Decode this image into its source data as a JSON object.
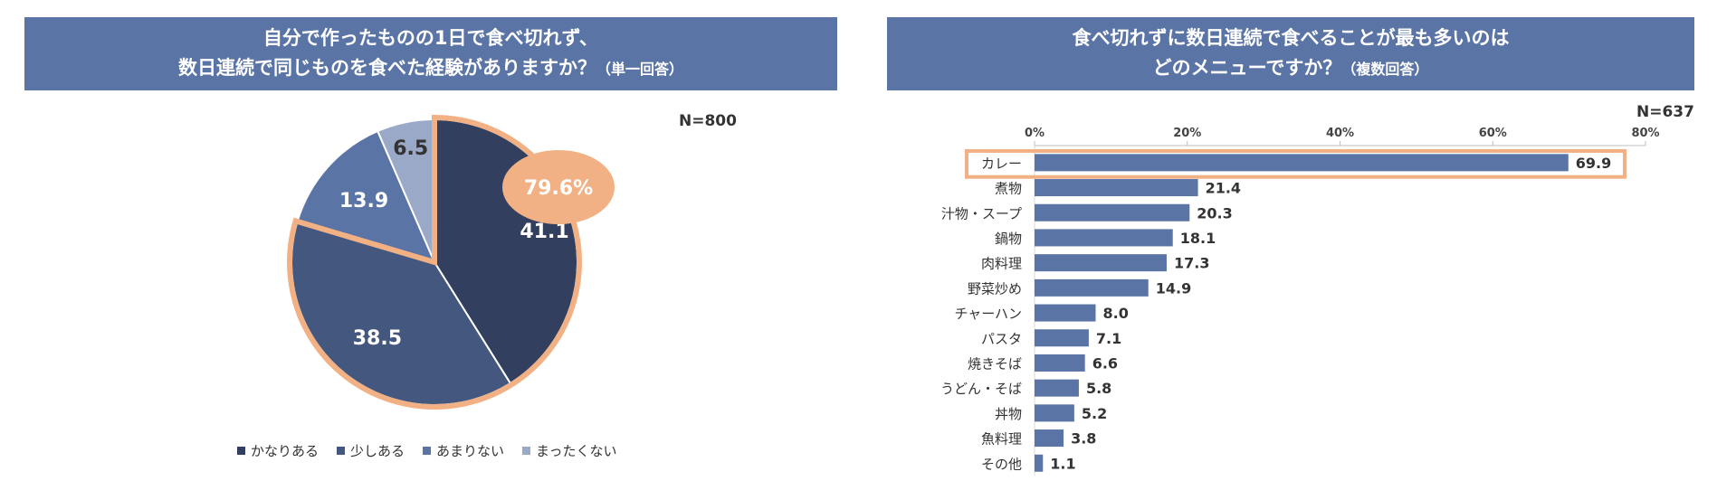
{
  "left": {
    "title_line1": "自分で作ったものの1日で食べ切れず、",
    "title_line2": "数日連続で同じものを食べた経験がありますか？",
    "title_note": "（単一回答）",
    "n_label": "N=800",
    "highlight_label": "79.6%"
  },
  "right": {
    "title_line1": "食べ切れずに数日連続で食べることが最も多いのは",
    "title_line2": "どのメニューですか？",
    "title_note": "（複数回答）",
    "n_label": "N=637"
  },
  "colors": {
    "header_bg": "#5a74a6",
    "pie": [
      "#333f5f",
      "#43577f",
      "#5a74a6",
      "#9aa9c8"
    ],
    "bar": "#5a74a6",
    "highlight": "#f2b184"
  },
  "chart_data": [
    {
      "type": "pie",
      "categories": [
        "かなりある",
        "少しある",
        "あまりない",
        "まったくない"
      ],
      "values": [
        41.1,
        38.5,
        13.9,
        6.5
      ],
      "legend": "bottom"
    },
    {
      "type": "bar",
      "orientation": "horizontal",
      "categories": [
        "カレー",
        "煮物",
        "汁物・スープ",
        "鍋物",
        "肉料理",
        "野菜炒め",
        "チャーハン",
        "パスタ",
        "焼きそば",
        "うどん・そば",
        "丼物",
        "魚料理",
        "その他"
      ],
      "values": [
        69.9,
        21.4,
        20.3,
        18.1,
        17.3,
        14.9,
        8.0,
        7.1,
        6.6,
        5.8,
        5.2,
        3.8,
        1.1
      ],
      "xlim": [
        0,
        80
      ],
      "xticks": [
        "0%",
        "20%",
        "40%",
        "60%",
        "80%"
      ]
    }
  ]
}
